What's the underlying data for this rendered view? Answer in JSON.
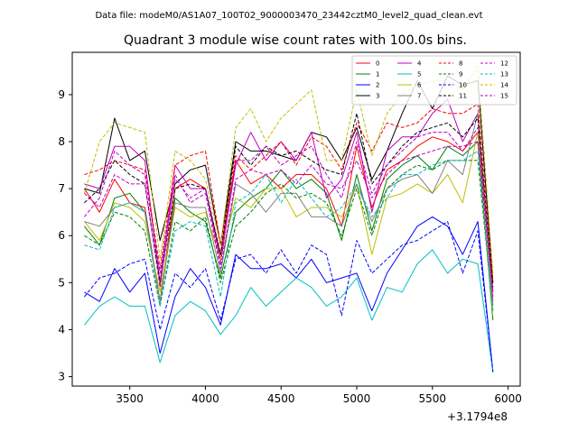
{
  "figure": {
    "suptitle": "Data file: modeM0/AS1A07_100T02_9000003470_23442cztM0_level2_quad_clean.evt",
    "offset_label": "+3.1794e8"
  },
  "chart_data": {
    "type": "line",
    "title": "Quadrant 3 module wise count rates with 100.0s bins.",
    "xlabel": "",
    "ylabel": "",
    "x_offset": 317940000,
    "xlim": [
      3120,
      6080
    ],
    "ylim": [
      2.8,
      9.9
    ],
    "xticks": [
      3500,
      4000,
      4500,
      5000,
      5500,
      6000
    ],
    "yticks": [
      3,
      4,
      5,
      6,
      7,
      8,
      9
    ],
    "grid": false,
    "legend": {
      "placement": "top-right",
      "columns": 4
    },
    "x": [
      3200,
      3300,
      3400,
      3500,
      3600,
      3700,
      3800,
      3900,
      4000,
      4100,
      4200,
      4300,
      4400,
      4500,
      4600,
      4700,
      4800,
      4900,
      5000,
      5100,
      5200,
      5300,
      5400,
      5500,
      5600,
      5700,
      5800,
      5900
    ],
    "series": [
      {
        "name": "0",
        "color": "#ff0000",
        "dash": "solid",
        "values": [
          7.0,
          6.5,
          7.2,
          6.7,
          6.6,
          4.6,
          7.0,
          7.2,
          7.0,
          5.6,
          7.6,
          7.1,
          7.3,
          7.0,
          7.3,
          7.3,
          7.0,
          6.2,
          7.9,
          6.6,
          7.4,
          7.6,
          7.9,
          8.1,
          8.0,
          7.8,
          8.2,
          4.8
        ]
      },
      {
        "name": "1",
        "color": "#008000",
        "dash": "solid",
        "values": [
          6.2,
          5.8,
          6.8,
          6.9,
          6.5,
          4.6,
          6.8,
          6.5,
          6.3,
          5.1,
          6.5,
          6.8,
          7.0,
          7.4,
          7.0,
          7.2,
          6.9,
          5.9,
          7.3,
          6.1,
          7.2,
          7.5,
          7.7,
          7.4,
          7.9,
          7.7,
          8.0,
          4.2
        ]
      },
      {
        "name": "2",
        "color": "#0000ff",
        "dash": "solid",
        "values": [
          4.8,
          4.6,
          5.3,
          4.8,
          5.2,
          3.5,
          4.7,
          5.3,
          4.9,
          4.1,
          5.6,
          5.3,
          5.3,
          5.4,
          5.1,
          5.5,
          5.0,
          5.1,
          5.2,
          4.4,
          5.2,
          5.7,
          6.2,
          6.4,
          6.2,
          5.6,
          6.3,
          3.1
        ]
      },
      {
        "name": "3",
        "color": "#000000",
        "dash": "solid",
        "values": [
          7.0,
          6.9,
          8.5,
          7.6,
          7.8,
          5.9,
          7.1,
          7.4,
          7.5,
          5.8,
          8.0,
          7.8,
          7.8,
          7.7,
          7.6,
          8.2,
          8.1,
          7.6,
          8.3,
          7.2,
          7.8,
          8.6,
          9.3,
          8.7,
          9.4,
          9.2,
          9.3,
          5.0
        ]
      },
      {
        "name": "4",
        "color": "#c000c0",
        "dash": "solid",
        "values": [
          7.1,
          7.0,
          7.9,
          7.9,
          7.6,
          5.0,
          7.5,
          7.0,
          7.0,
          5.5,
          7.5,
          8.2,
          7.6,
          8.0,
          7.6,
          8.2,
          6.8,
          7.2,
          8.2,
          6.5,
          7.8,
          8.1,
          8.1,
          8.6,
          8.9,
          8.0,
          8.6,
          4.6
        ]
      },
      {
        "name": "5",
        "color": "#00bfbf",
        "dash": "solid",
        "values": [
          4.1,
          4.5,
          4.7,
          4.5,
          4.5,
          3.3,
          4.3,
          4.6,
          4.4,
          3.9,
          4.3,
          4.9,
          4.5,
          4.8,
          5.1,
          4.9,
          4.5,
          4.7,
          5.1,
          4.2,
          4.9,
          4.8,
          5.4,
          5.7,
          5.2,
          5.5,
          5.4,
          3.1
        ]
      },
      {
        "name": "6",
        "color": "#bfbf00",
        "dash": "solid",
        "values": [
          6.3,
          5.9,
          6.7,
          6.6,
          6.3,
          4.8,
          6.6,
          6.4,
          6.5,
          5.5,
          6.8,
          6.6,
          7.0,
          7.0,
          6.4,
          6.6,
          6.6,
          6.4,
          7.1,
          5.6,
          6.8,
          6.9,
          7.1,
          6.9,
          7.3,
          6.7,
          8.2,
          4.3
        ]
      },
      {
        "name": "7",
        "color": "#808080",
        "dash": "solid",
        "values": [
          6.3,
          6.2,
          6.6,
          6.7,
          6.5,
          4.6,
          6.7,
          6.6,
          6.6,
          5.2,
          7.1,
          6.9,
          6.5,
          6.9,
          6.9,
          6.4,
          6.4,
          6.2,
          7.1,
          6.3,
          7.0,
          7.2,
          7.3,
          6.9,
          7.6,
          7.3,
          8.6,
          4.5
        ]
      },
      {
        "name": "8",
        "color": "#ff0000",
        "dash": "dashed",
        "values": [
          7.3,
          7.4,
          7.6,
          7.5,
          7.4,
          5.3,
          7.5,
          7.7,
          7.8,
          5.8,
          7.7,
          7.4,
          7.7,
          8.0,
          7.5,
          8.1,
          7.9,
          7.4,
          8.4,
          7.8,
          8.4,
          8.3,
          8.4,
          8.7,
          8.6,
          8.6,
          8.8,
          5.0
        ]
      },
      {
        "name": "9",
        "color": "#008000",
        "dash": "dashed",
        "values": [
          6.0,
          5.8,
          6.5,
          6.4,
          6.1,
          4.5,
          6.3,
          6.1,
          6.4,
          5.0,
          6.2,
          6.5,
          6.9,
          7.1,
          6.8,
          6.9,
          6.7,
          6.0,
          7.0,
          6.0,
          7.0,
          7.3,
          7.5,
          7.4,
          7.6,
          7.6,
          7.6,
          4.4
        ]
      },
      {
        "name": "10",
        "color": "#0000ff",
        "dash": "dashed",
        "values": [
          4.7,
          5.1,
          5.2,
          5.4,
          5.5,
          4.0,
          5.2,
          4.9,
          5.3,
          4.2,
          5.5,
          5.6,
          5.2,
          5.7,
          5.2,
          5.8,
          5.6,
          4.3,
          5.9,
          5.2,
          5.5,
          5.8,
          5.9,
          6.1,
          6.3,
          5.2,
          6.1,
          3.1
        ]
      },
      {
        "name": "11",
        "color": "#000000",
        "dash": "dashed",
        "values": [
          6.7,
          7.0,
          7.6,
          7.3,
          7.1,
          5.0,
          7.0,
          7.1,
          7.0,
          5.6,
          7.9,
          7.5,
          7.9,
          7.7,
          7.8,
          7.6,
          7.4,
          7.3,
          8.6,
          7.1,
          7.5,
          7.9,
          8.2,
          8.3,
          8.4,
          8.1,
          8.5,
          4.9
        ]
      },
      {
        "name": "12",
        "color": "#c000c0",
        "dash": "dashed",
        "values": [
          6.9,
          6.6,
          7.3,
          7.1,
          7.1,
          4.9,
          7.3,
          6.7,
          6.9,
          5.3,
          7.2,
          7.4,
          7.3,
          7.4,
          7.1,
          7.5,
          7.1,
          7.0,
          7.6,
          6.8,
          7.3,
          7.6,
          7.7,
          7.8,
          7.9,
          7.9,
          8.0,
          4.7
        ]
      },
      {
        "name": "13",
        "color": "#00bfbf",
        "dash": "dashed",
        "values": [
          5.8,
          5.7,
          6.6,
          6.7,
          6.5,
          4.5,
          6.1,
          6.3,
          6.2,
          4.7,
          6.7,
          6.9,
          7.3,
          6.7,
          7.2,
          6.8,
          6.4,
          6.6,
          7.1,
          6.4,
          6.8,
          7.3,
          7.3,
          7.5,
          7.6,
          7.6,
          7.8,
          4.4
        ]
      },
      {
        "name": "14",
        "color": "#bfbf00",
        "dash": "dashed",
        "values": [
          6.9,
          8.0,
          8.4,
          8.3,
          8.2,
          5.5,
          7.8,
          7.6,
          7.2,
          5.8,
          8.3,
          8.7,
          8.0,
          8.5,
          8.8,
          9.1,
          7.6,
          7.6,
          9.1,
          7.7,
          8.6,
          9.0,
          9.2,
          9.3,
          9.3,
          9.1,
          9.6,
          5.2
        ]
      },
      {
        "name": "15",
        "color": "#c000c0",
        "dash": "dashed",
        "values": [
          6.4,
          6.8,
          7.8,
          7.5,
          7.3,
          5.2,
          7.2,
          6.8,
          7.0,
          5.4,
          7.6,
          7.6,
          7.9,
          7.5,
          7.7,
          7.9,
          7.3,
          6.8,
          8.0,
          6.9,
          7.5,
          7.8,
          8.1,
          8.2,
          8.2,
          7.8,
          8.3,
          4.8
        ]
      }
    ]
  }
}
